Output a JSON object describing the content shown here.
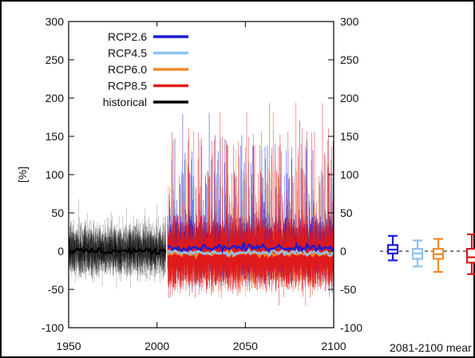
{
  "chart_data": {
    "type": "line",
    "ylabel": "[%]",
    "ylim": [
      -100,
      300
    ],
    "xlim": [
      1950,
      2100
    ],
    "x_ticks": [
      1950,
      2000,
      2050,
      2100
    ],
    "y_ticks": [
      -100,
      -50,
      0,
      50,
      100,
      150,
      200,
      250,
      300
    ],
    "x_tick_labels": [
      "1950",
      "2000",
      "2050",
      "2100"
    ],
    "y_tick_labels": [
      "-100",
      "-50",
      "0",
      "50",
      "100",
      "150",
      "200",
      "250",
      "300"
    ],
    "grid": false,
    "legend_position": "top-left",
    "series": [
      {
        "name": "RCP2.6",
        "color": "#1b1bd6",
        "period": [
          2006,
          2100
        ],
        "mean": 5,
        "spread": [
          -50,
          250
        ]
      },
      {
        "name": "RCP4.5",
        "color": "#8ec2f0",
        "period": [
          2006,
          2100
        ],
        "mean": -2,
        "spread": [
          -55,
          200
        ]
      },
      {
        "name": "RCP6.0",
        "color": "#f08a2a",
        "period": [
          2006,
          2100
        ],
        "mean": -3,
        "spread": [
          -60,
          210
        ]
      },
      {
        "name": "RCP8.5",
        "color": "#e31a1a",
        "period": [
          2006,
          2100
        ],
        "mean": -5,
        "spread": [
          -80,
          260
        ]
      },
      {
        "name": "historical",
        "color": "#000000",
        "period": [
          1950,
          2005
        ],
        "mean": 0,
        "spread": [
          -60,
          105
        ]
      }
    ],
    "boxplots": {
      "label": "2081-2100 mear",
      "items": [
        {
          "series": "RCP2.6",
          "color": "#1b1bd6",
          "q1": -3,
          "median": 2,
          "q3": 8,
          "whisker_low": -12,
          "whisker_high": 20
        },
        {
          "series": "RCP4.5",
          "color": "#8ec2f0",
          "q1": -10,
          "median": -3,
          "q3": 3,
          "whisker_low": -20,
          "whisker_high": 14
        },
        {
          "series": "RCP6.0",
          "color": "#f08a2a",
          "q1": -10,
          "median": -4,
          "q3": 3,
          "whisker_low": -27,
          "whisker_high": 16
        },
        {
          "series": "RCP8.5",
          "color": "#d11a1a",
          "q1": -15,
          "median": -8,
          "q3": 3,
          "whisker_low": -30,
          "whisker_high": 22
        }
      ]
    }
  }
}
